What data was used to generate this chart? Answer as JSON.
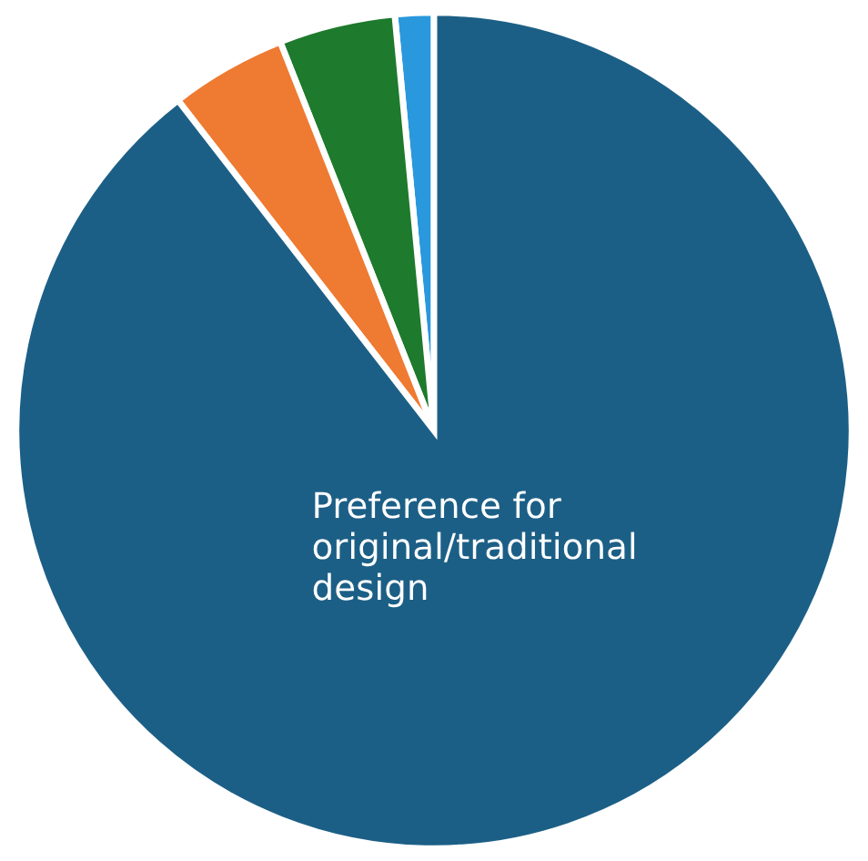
{
  "chart_data": {
    "type": "pie",
    "categories": [
      null,
      null,
      null,
      "Preference for\noriginal/traditional\ndesign"
    ],
    "values": [
      1.5,
      4.5,
      4.5,
      89.5
    ],
    "colors": [
      "#2a98dc",
      "#1e7a2c",
      "#ef7a31",
      "#1c5f86"
    ]
  }
}
